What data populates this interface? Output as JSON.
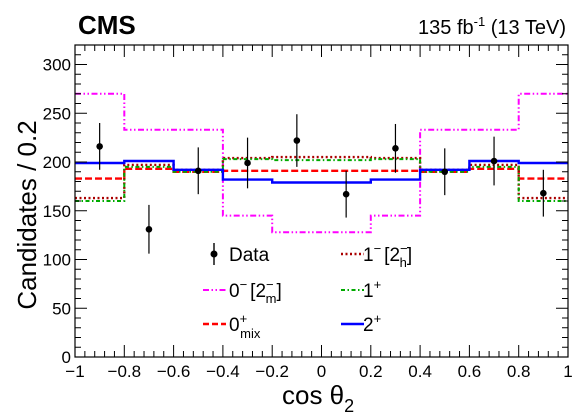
{
  "header": {
    "experiment": "CMS",
    "lumi": "135 fb",
    "lumi_exp": "-1",
    "energy": " (13 TeV)"
  },
  "axes": {
    "xlabel": "cos θ",
    "xlabel_sub": "2",
    "ylabel": "Candidates / 0.2"
  },
  "legend": {
    "data": "Data",
    "h0m_main": "0",
    "h0m_sup": "−",
    "h0m_bracket": "[2",
    "h0m_b_sup": "−",
    "h0m_b_sub": "m",
    "h0m_close": "]",
    "h1m_main": "1",
    "h1m_sup": "−",
    "h1m_bracket": "[2",
    "h1m_b_sup": "−",
    "h1m_b_sub": "h",
    "h1m_close": "]",
    "mix_main": "0",
    "mix_sup": "+",
    "mix_sub": "mix",
    "one_plus_main": "1",
    "one_plus_sup": "+",
    "two_plus_main": "2",
    "two_plus_sup": "+"
  },
  "chart_data": {
    "type": "line",
    "xlim": [
      -1,
      1
    ],
    "ylim": [
      0,
      320
    ],
    "x_ticks": [
      -1,
      -0.8,
      -0.6,
      -0.4,
      -0.2,
      0,
      0.2,
      0.4,
      0.6,
      0.8,
      1
    ],
    "x_tick_labels": [
      "−1",
      "−0.8",
      "−0.6",
      "−0.4",
      "−0.2",
      "0",
      "0.2",
      "0.4",
      "0.6",
      "0.8",
      "1"
    ],
    "y_ticks": [
      0,
      50,
      100,
      150,
      200,
      250,
      300
    ],
    "y_tick_labels": [
      "0",
      "50",
      "100",
      "150",
      "200",
      "250",
      "300"
    ],
    "bin_edges": [
      -1,
      -0.8,
      -0.6,
      -0.4,
      -0.2,
      0,
      0.2,
      0.4,
      0.6,
      0.8,
      1
    ],
    "data_points": {
      "x": [
        -0.9,
        -0.7,
        -0.5,
        -0.3,
        -0.1,
        0.1,
        0.3,
        0.5,
        0.7,
        0.9
      ],
      "y": [
        216,
        131,
        191,
        199,
        222,
        167,
        214,
        190,
        201,
        168
      ],
      "err": [
        24,
        25,
        24,
        26,
        27,
        24,
        25,
        24,
        25,
        24
      ]
    },
    "series": [
      {
        "name": "0− [2−m]",
        "color": "#ff00ff",
        "style": "dash-dot-dot",
        "values": [
          270,
          233,
          233,
          145,
          128,
          128,
          145,
          233,
          233,
          270
        ]
      },
      {
        "name": "0+mix",
        "color": "#ff0000",
        "style": "dashed",
        "values": [
          183,
          193,
          190,
          191,
          191,
          191,
          191,
          190,
          193,
          183
        ]
      },
      {
        "name": "1− [2−h]",
        "color": "#aa0000",
        "style": "dotted",
        "values": [
          163,
          197,
          192,
          204,
          205,
          205,
          204,
          192,
          197,
          163
        ]
      },
      {
        "name": "1+",
        "color": "#00aa00",
        "style": "dash-dot",
        "values": [
          160,
          195,
          190,
          203,
          202,
          202,
          203,
          190,
          195,
          160
        ]
      },
      {
        "name": "2+",
        "color": "#0000ff",
        "style": "solid",
        "values": [
          199,
          201,
          192,
          182,
          179,
          179,
          182,
          192,
          201,
          199
        ]
      }
    ]
  }
}
